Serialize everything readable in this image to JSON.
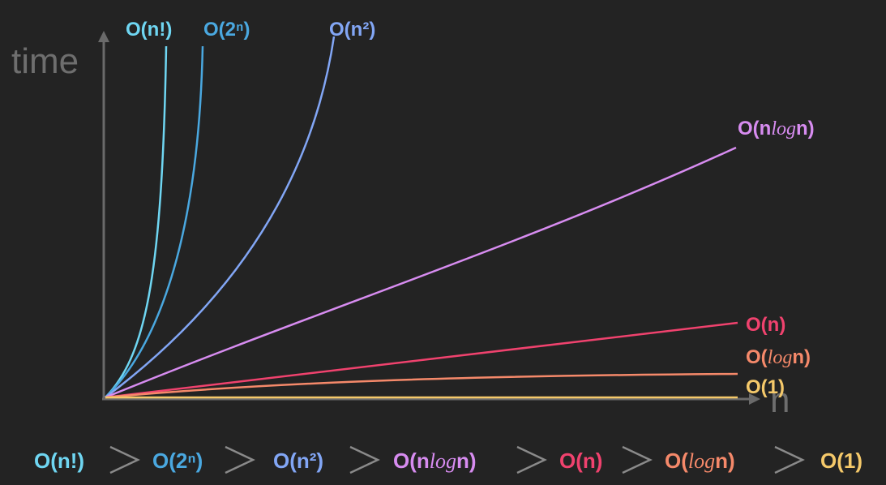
{
  "axes": {
    "y_label": "time",
    "x_label": "n"
  },
  "curves": [
    {
      "label": [
        "O(n!)"
      ]
    },
    {
      "label": [
        "O(2ⁿ)"
      ]
    },
    {
      "label": [
        "O(n²)"
      ]
    },
    {
      "label": [
        "O(n",
        "log",
        "n)"
      ]
    },
    {
      "label": [
        "O(n)"
      ]
    },
    {
      "label": [
        "O(",
        "log",
        "n)"
      ]
    },
    {
      "label": [
        "O(1)"
      ]
    }
  ],
  "ranking": [
    [
      "O(n!)"
    ],
    [
      "O(2ⁿ)"
    ],
    [
      "O(n²)"
    ],
    [
      "O(n",
      "log",
      "n)"
    ],
    [
      "O(n)"
    ],
    [
      "O(",
      "log",
      "n)"
    ],
    [
      "O(1)"
    ]
  ]
}
